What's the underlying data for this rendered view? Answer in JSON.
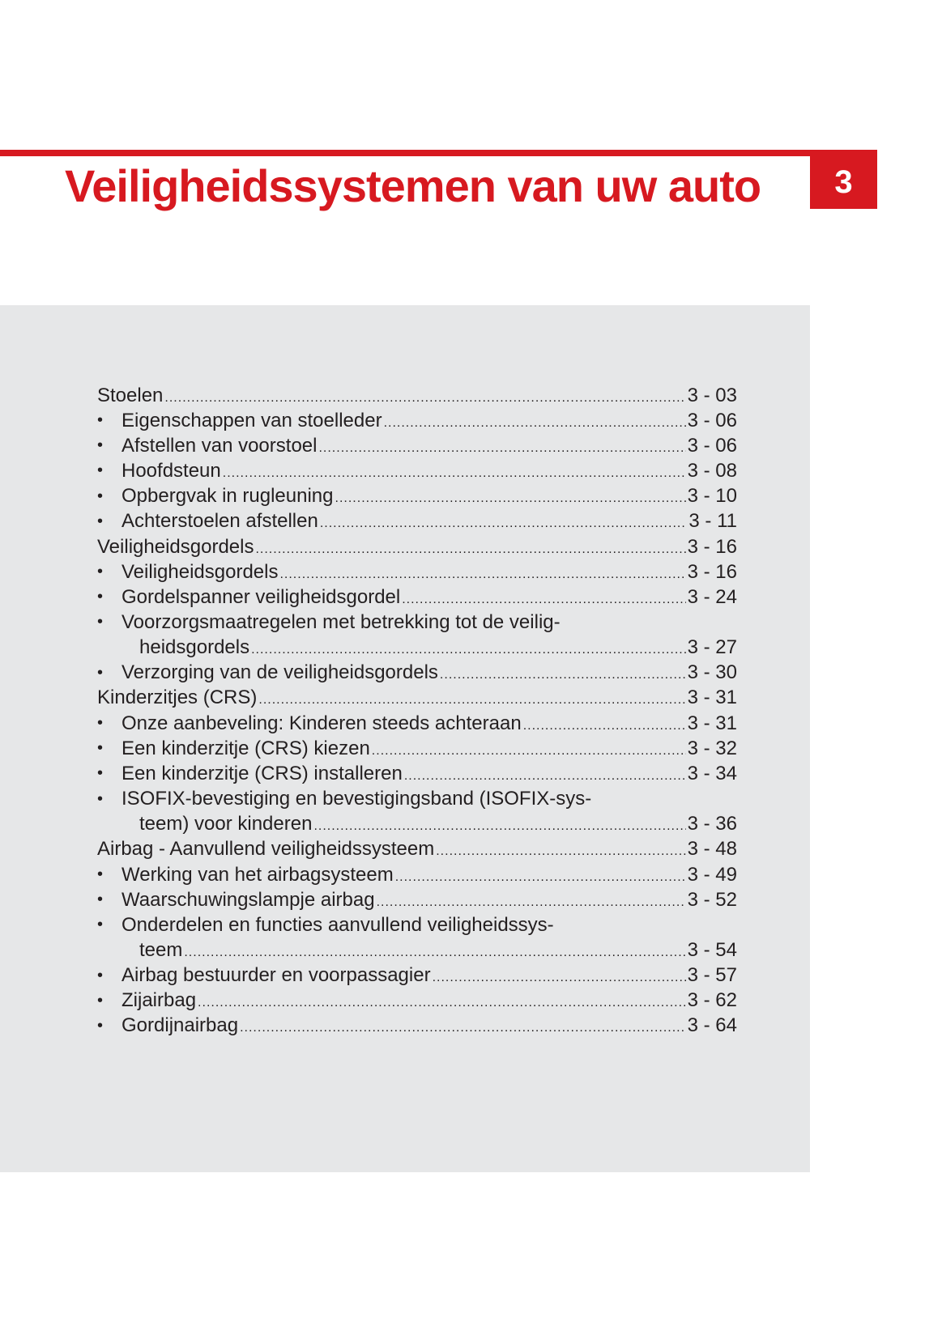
{
  "header": {
    "title": "Veiligheidssystemen van uw auto",
    "chapter": "3",
    "accent_color": "#d71920"
  },
  "toc": [
    {
      "type": "main",
      "label": "Stoelen",
      "page": "3 - 03"
    },
    {
      "type": "sub",
      "label": "Eigenschappen van stoelleder",
      "page": "3 - 06"
    },
    {
      "type": "sub",
      "label": "Afstellen van voorstoel",
      "page": "3 - 06"
    },
    {
      "type": "sub",
      "label": "Hoofdsteun",
      "page": "3 - 08"
    },
    {
      "type": "sub",
      "label": "Opbergvak in rugleuning ",
      "page": "3 - 10"
    },
    {
      "type": "sub",
      "label": "Achterstoelen afstellen",
      "page": "3 - 11"
    },
    {
      "type": "main",
      "label": "Veiligheidsgordels",
      "page": "3 - 16"
    },
    {
      "type": "sub",
      "label": "Veiligheidsgordels",
      "page": "3 - 16"
    },
    {
      "type": "sub",
      "label": "Gordelspanner veiligheidsgordel ",
      "page": "3 - 24"
    },
    {
      "type": "sub",
      "label": "Voorzorgsmaatregelen met betrekking tot de veilig-",
      "cont": "heidsgordels",
      "page": "3 - 27"
    },
    {
      "type": "sub",
      "label": "Verzorging van de veiligheidsgordels",
      "page": "3 - 30"
    },
    {
      "type": "main",
      "label": "Kinderzitjes (CRS)",
      "page": "3 - 31"
    },
    {
      "type": "sub",
      "label": "Onze aanbeveling: Kinderen steeds achteraan",
      "page": "3 - 31"
    },
    {
      "type": "sub",
      "label": "Een kinderzitje (CRS) kiezen",
      "page": "3 - 32"
    },
    {
      "type": "sub",
      "label": "Een kinderzitje (CRS) installeren",
      "page": "3 - 34"
    },
    {
      "type": "sub",
      "label": "ISOFIX-bevestiging en bevestigingsband (ISOFIX-sys-",
      "cont": "teem) voor kinderen ",
      "page": "3 - 36"
    },
    {
      "type": "main",
      "label": "Airbag - Aanvullend veiligheidssysteem ",
      "page": "3 - 48"
    },
    {
      "type": "sub",
      "label": "Werking van het airbagsysteem",
      "page": "3 - 49"
    },
    {
      "type": "sub",
      "label": "Waarschuwingslampje airbag",
      "page": "3 - 52"
    },
    {
      "type": "sub",
      "label": "Onderdelen en functies aanvullend veiligheidssys-",
      "cont": "teem",
      "page": "3 - 54"
    },
    {
      "type": "sub",
      "label": "Airbag bestuurder en voorpassagier ",
      "page": "3 - 57"
    },
    {
      "type": "sub",
      "label": "Zijairbag",
      "page": "3 - 62"
    },
    {
      "type": "sub",
      "label": "Gordijnairbag",
      "page": "3 - 64"
    }
  ]
}
